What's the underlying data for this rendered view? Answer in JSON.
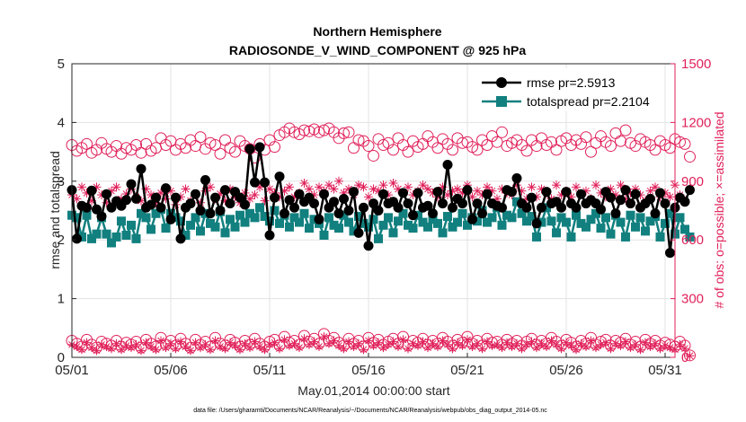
{
  "colors": {
    "rmse": "#000000",
    "spread": "#11807f",
    "obs": "#e0215a",
    "grid": "#e3e3e3",
    "axis": "#262626"
  },
  "chart_data": {
    "type": "line",
    "title": "Northern Hemisphere",
    "subtitle": "RADIOSONDE_V_WIND_COMPONENT @ 925 hPa",
    "xlabel": "May.01,2014 00:00:00 start",
    "ylabel": "rmse and totalspread",
    "ylabel_right": "# of obs: o=possible; ×=assimilated",
    "footnote": "data file: /Users/gharamti/Documents/NCAR/Reanalysis/~/Documents/NCAR/Reanalysis/webpub/obs_diag_output_2014-05.nc",
    "xlim": [
      1,
      31.5
    ],
    "ylim": [
      0,
      5
    ],
    "ylim_right": [
      0,
      1500
    ],
    "x_ticks": [
      1,
      6,
      11,
      16,
      21,
      26,
      31
    ],
    "x_tick_labels": [
      "05/01",
      "05/06",
      "05/11",
      "05/16",
      "05/21",
      "05/26",
      "05/31"
    ],
    "y_ticks": [
      0,
      1,
      2,
      3,
      4,
      5
    ],
    "y_tick_labels": [
      "0",
      "1",
      "2",
      "3",
      "4",
      "5"
    ],
    "y_ticks_right": [
      0,
      300,
      600,
      900,
      1200,
      1500
    ],
    "y_tick_labels_right": [
      "0",
      "300",
      "600",
      "900",
      "1200",
      "1500"
    ],
    "x_step_days": 0.25,
    "x_start": 1,
    "series": [
      {
        "name": "rmse pr=2.5913",
        "axis": "left",
        "style": "line-circle",
        "values": [
          2.85,
          2.02,
          2.58,
          2.55,
          2.84,
          2.52,
          2.4,
          2.78,
          2.55,
          2.66,
          2.58,
          2.68,
          2.95,
          2.7,
          3.21,
          2.55,
          2.6,
          2.72,
          2.55,
          2.88,
          2.35,
          2.72,
          2.02,
          2.55,
          2.62,
          2.78,
          2.5,
          3.02,
          2.45,
          2.72,
          2.5,
          2.85,
          2.62,
          2.82,
          2.72,
          2.6,
          3.55,
          2.98,
          3.58,
          2.98,
          2.08,
          2.72,
          3.08,
          2.45,
          2.68,
          2.55,
          2.78,
          2.65,
          2.72,
          2.62,
          2.35,
          2.78,
          2.55,
          2.65,
          2.45,
          2.7,
          2.5,
          2.82,
          2.12,
          2.55,
          1.9,
          2.62,
          2.5,
          2.78,
          2.62,
          2.65,
          2.55,
          2.8,
          2.62,
          2.42,
          2.8,
          2.55,
          2.58,
          2.45,
          2.82,
          2.62,
          3.28,
          2.55,
          2.7,
          2.62,
          2.85,
          2.35,
          2.62,
          2.45,
          2.78,
          2.62,
          2.58,
          2.55,
          2.85,
          2.82,
          3.05,
          2.62,
          2.55,
          2.72,
          2.28,
          2.55,
          2.82,
          2.62,
          2.65,
          2.55,
          2.82,
          2.62,
          2.55,
          2.78,
          2.62,
          2.68,
          2.62,
          2.52,
          2.82,
          2.72,
          2.45,
          2.68,
          2.85,
          2.62,
          2.78,
          2.55,
          2.62,
          2.7,
          2.45,
          2.8,
          2.62,
          1.78,
          2.55,
          2.72,
          2.65,
          2.85
        ]
      },
      {
        "name": "totalspread pr=2.2104",
        "axis": "left",
        "style": "line-square",
        "values": [
          2.42,
          2.38,
          2.05,
          2.42,
          2.02,
          2.1,
          2.38,
          2.1,
          1.95,
          2.05,
          2.32,
          2.08,
          2.25,
          2.02,
          2.45,
          2.38,
          2.18,
          2.45,
          2.52,
          2.2,
          2.45,
          2.38,
          2.32,
          2.08,
          2.25,
          2.38,
          2.15,
          2.45,
          2.28,
          2.22,
          2.48,
          2.12,
          2.35,
          2.22,
          2.42,
          2.3,
          2.45,
          2.38,
          2.55,
          2.4,
          2.32,
          2.5,
          2.28,
          2.42,
          2.22,
          2.38,
          2.3,
          2.45,
          2.2,
          2.35,
          2.28,
          2.08,
          2.38,
          2.25,
          2.2,
          2.42,
          2.3,
          2.15,
          2.4,
          2.28,
          2.22,
          2.35,
          2.02,
          2.25,
          2.38,
          2.12,
          2.32,
          2.45,
          2.25,
          2.2,
          2.42,
          2.3,
          2.22,
          2.35,
          2.28,
          2.12,
          2.4,
          2.22,
          2.3,
          2.45,
          2.25,
          2.38,
          2.32,
          2.5,
          2.3,
          2.38,
          2.55,
          2.25,
          2.42,
          2.38,
          2.65,
          2.45,
          2.32,
          2.4,
          2.05,
          2.3,
          2.55,
          2.32,
          2.12,
          2.38,
          2.3,
          2.05,
          2.42,
          2.28,
          2.22,
          2.35,
          2.45,
          2.2,
          2.38,
          2.1,
          2.42,
          2.3,
          2.05,
          2.42,
          2.22,
          2.38,
          2.15,
          2.32,
          2.4,
          2.05,
          2.28,
          2.45,
          2.1,
          2.38,
          2.18,
          2.05
        ]
      },
      {
        "name": "possible (upper)",
        "axis": "right",
        "style": "open-circle",
        "values": [
          1085,
          1055,
          1070,
          1090,
          1045,
          1060,
          1095,
          1065,
          1050,
          1080,
          1040,
          1070,
          1060,
          1085,
          1045,
          1090,
          1055,
          1070,
          1120,
          1085,
          1105,
          1060,
          1090,
          1070,
          1110,
          1080,
          1125,
          1065,
          1095,
          1085,
          1040,
          1110,
          1070,
          1050,
          1105,
          1080,
          1065,
          1020,
          1090,
          1060,
          1110,
          1075,
          1135,
          1150,
          1170,
          1150,
          1140,
          1160,
          1155,
          1165,
          1150,
          1160,
          1170,
          1150,
          1120,
          1145,
          1150,
          1070,
          1110,
          1105,
          1080,
          1030,
          1115,
          1085,
          1095,
          1060,
          1120,
          1085,
          1050,
          1105,
          1075,
          1090,
          1130,
          1100,
          1070,
          1115,
          1090,
          1060,
          1120,
          1095,
          1100,
          1075,
          1060,
          1110,
          1085,
          1130,
          1100,
          1150,
          1080,
          1095,
          1110,
          1085,
          1055,
          1110,
          1080,
          1120,
          1085,
          1100,
          1060,
          1105,
          1120,
          1085,
          1110,
          1090,
          1125,
          1050,
          1095,
          1130,
          1100,
          1080,
          1145,
          1105,
          1160,
          1095,
          1080,
          1115,
          1100,
          1085,
          1060,
          1105,
          1085,
          1070,
          1115,
          1100,
          1090,
          1025
        ]
      },
      {
        "name": "assimilated (upper)",
        "axis": "right",
        "style": "star",
        "values": [
          830,
          810,
          870,
          840,
          800,
          870,
          830,
          790,
          850,
          870,
          810,
          835,
          860,
          820,
          800,
          860,
          830,
          790,
          840,
          810,
          850,
          780,
          820,
          860,
          800,
          830,
          790,
          850,
          870,
          810,
          835,
          800,
          860,
          820,
          790,
          840,
          810,
          830,
          870,
          800,
          860,
          840,
          820,
          850,
          870,
          820,
          840,
          890,
          860,
          830,
          870,
          850,
          880,
          860,
          900,
          840,
          860,
          830,
          880,
          870,
          820,
          860,
          850,
          880,
          830,
          890,
          860,
          840,
          870,
          830,
          850,
          880,
          860,
          840,
          820,
          870,
          830,
          850,
          860,
          840,
          880,
          820,
          850,
          830,
          870,
          850,
          810,
          860,
          840,
          830,
          880,
          850,
          810,
          870,
          820,
          860,
          840,
          810,
          880,
          830,
          850,
          820,
          870,
          830,
          850,
          810,
          880,
          840,
          820,
          860,
          830,
          880,
          810,
          840,
          860,
          830,
          800,
          850,
          870,
          820,
          840,
          820,
          880,
          830,
          800,
          860
        ]
      },
      {
        "name": "possible (lower)",
        "axis": "right",
        "style": "open-circle",
        "values": [
          85,
          70,
          55,
          90,
          65,
          50,
          80,
          70,
          60,
          85,
          55,
          75,
          65,
          80,
          50,
          90,
          70,
          55,
          100,
          65,
          85,
          60,
          95,
          70,
          50,
          90,
          65,
          80,
          55,
          100,
          70,
          60,
          90,
          75,
          55,
          85,
          65,
          95,
          70,
          55,
          80,
          90,
          60,
          105,
          75,
          85,
          65,
          110,
          80,
          95,
          70,
          120,
          85,
          100,
          75,
          60,
          95,
          70,
          85,
          55,
          100,
          75,
          90,
          65,
          80,
          95,
          70,
          105,
          60,
          85,
          75,
          95,
          65,
          85,
          70,
          100,
          80,
          60,
          90,
          75,
          105,
          70,
          85,
          60,
          95,
          75,
          80,
          65,
          90,
          70,
          85,
          60,
          80,
          95,
          65,
          85,
          70,
          100,
          80,
          60,
          90,
          75,
          55,
          85,
          70,
          100,
          65,
          80,
          90,
          60,
          85,
          75,
          95,
          65,
          80,
          55,
          90,
          70,
          85,
          60,
          75,
          65,
          55,
          80,
          60,
          10
        ]
      },
      {
        "name": "assimilated (lower)",
        "axis": "right",
        "style": "star",
        "values": [
          65,
          55,
          40,
          75,
          50,
          35,
          65,
          55,
          45,
          70,
          40,
          60,
          50,
          65,
          35,
          75,
          55,
          40,
          85,
          50,
          70,
          45,
          80,
          55,
          35,
          75,
          50,
          65,
          40,
          85,
          55,
          45,
          75,
          60,
          40,
          70,
          50,
          80,
          55,
          40,
          65,
          75,
          45,
          90,
          60,
          70,
          50,
          95,
          65,
          80,
          55,
          105,
          70,
          85,
          60,
          45,
          80,
          55,
          70,
          40,
          85,
          60,
          75,
          50,
          65,
          80,
          55,
          90,
          45,
          70,
          60,
          80,
          50,
          70,
          55,
          85,
          65,
          45,
          75,
          60,
          90,
          55,
          70,
          45,
          80,
          60,
          65,
          50,
          75,
          55,
          70,
          45,
          65,
          80,
          50,
          70,
          55,
          85,
          65,
          45,
          75,
          60,
          40,
          70,
          55,
          85,
          50,
          65,
          75,
          45,
          70,
          60,
          80,
          50,
          65,
          40,
          75,
          55,
          70,
          45,
          60,
          50,
          40,
          65,
          45,
          8
        ]
      }
    ],
    "legend": {
      "placement": "top-right",
      "entries": [
        "rmse pr=2.5913",
        "totalspread pr=2.2104"
      ]
    }
  }
}
